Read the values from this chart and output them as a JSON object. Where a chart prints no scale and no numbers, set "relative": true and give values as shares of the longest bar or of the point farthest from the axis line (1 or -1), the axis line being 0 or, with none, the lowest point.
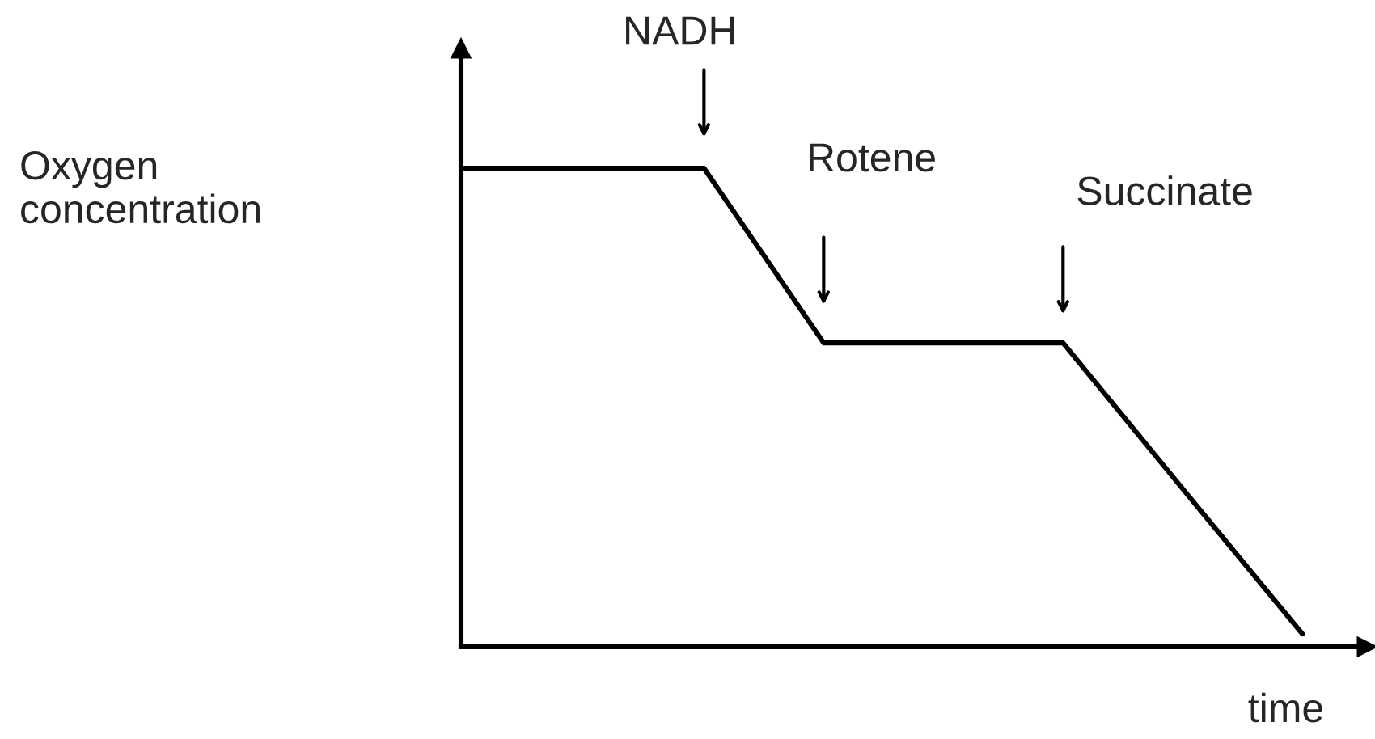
{
  "chart_data": {
    "type": "line",
    "relative": true,
    "xlabel": "time",
    "categories": [
      null,
      null,
      null,
      null,
      null,
      null,
      null,
      null
    ],
    "series": [
      {
        "color": "#000000",
        "values": [
          1,
          1,
          1,
          0.635,
          0.635,
          0.635,
          0.33,
          0.027
        ]
      }
    ],
    "annotations": [
      "Oxygen\nconcentration",
      "NADH",
      "Rotene",
      "Succinate"
    ],
    "marker": "none",
    "line_style": "solid"
  }
}
